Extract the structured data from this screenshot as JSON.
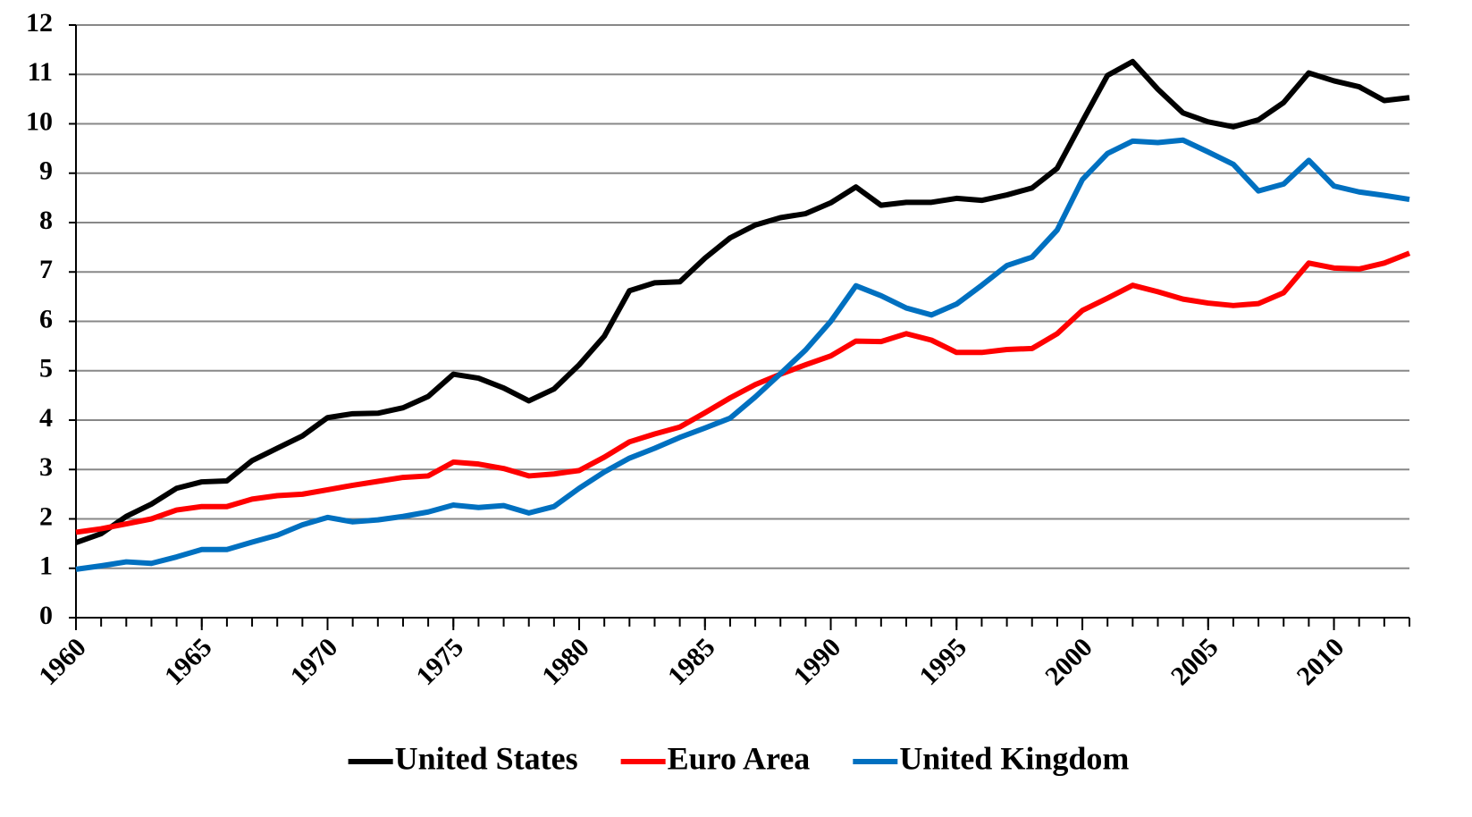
{
  "chart_data": {
    "type": "line",
    "x": [
      1960,
      1961,
      1962,
      1963,
      1964,
      1965,
      1966,
      1967,
      1968,
      1969,
      1970,
      1971,
      1972,
      1973,
      1974,
      1975,
      1976,
      1977,
      1978,
      1979,
      1980,
      1981,
      1982,
      1983,
      1984,
      1985,
      1986,
      1987,
      1988,
      1989,
      1990,
      1991,
      1992,
      1993,
      1994,
      1995,
      1996,
      1997,
      1998,
      1999,
      2000,
      2001,
      2002,
      2003,
      2004,
      2005,
      2006,
      2007,
      2008,
      2009,
      2010,
      2011,
      2012,
      2013
    ],
    "series": [
      {
        "name": "United States",
        "color": "#000000",
        "values": [
          1.52,
          1.7,
          2.05,
          2.3,
          2.62,
          2.75,
          2.77,
          3.18,
          3.43,
          3.68,
          4.05,
          4.13,
          4.14,
          4.25,
          4.48,
          4.93,
          4.85,
          4.65,
          4.39,
          4.63,
          5.12,
          5.7,
          6.62,
          6.78,
          6.8,
          7.28,
          7.69,
          7.95,
          8.1,
          8.18,
          8.4,
          8.72,
          8.35,
          8.41,
          8.41,
          8.49,
          8.45,
          8.56,
          8.7,
          9.1,
          10.05,
          10.98,
          11.26,
          10.7,
          10.22,
          10.04,
          9.94,
          10.08,
          10.43,
          11.03,
          10.87,
          10.75,
          10.47,
          10.53
        ]
      },
      {
        "name": "Euro Area",
        "color": "#ff0000",
        "values": [
          1.73,
          1.8,
          1.9,
          2.0,
          2.18,
          2.25,
          2.25,
          2.4,
          2.47,
          2.5,
          2.59,
          2.68,
          2.76,
          2.84,
          2.87,
          3.15,
          3.11,
          3.02,
          2.87,
          2.91,
          2.98,
          3.25,
          3.56,
          3.72,
          3.86,
          4.15,
          4.45,
          4.72,
          4.93,
          5.12,
          5.3,
          5.6,
          5.59,
          5.75,
          5.62,
          5.37,
          5.37,
          5.43,
          5.45,
          5.75,
          6.22,
          6.47,
          6.73,
          6.6,
          6.45,
          6.37,
          6.32,
          6.36,
          6.58,
          7.18,
          7.08,
          7.06,
          7.18,
          7.38
        ]
      },
      {
        "name": "United Kingdom",
        "color": "#0070c0",
        "values": [
          0.98,
          1.05,
          1.13,
          1.1,
          1.23,
          1.38,
          1.38,
          1.53,
          1.67,
          1.88,
          2.03,
          1.94,
          1.98,
          2.05,
          2.14,
          2.28,
          2.23,
          2.27,
          2.12,
          2.25,
          2.62,
          2.95,
          3.23,
          3.43,
          3.65,
          3.84,
          4.04,
          4.47,
          4.94,
          5.42,
          6.0,
          6.72,
          6.52,
          6.27,
          6.13,
          6.35,
          6.73,
          7.13,
          7.3,
          7.85,
          8.87,
          9.4,
          9.65,
          9.62,
          9.67,
          9.43,
          9.18,
          8.64,
          8.78,
          9.26,
          8.74,
          8.62,
          8.55,
          8.47
        ]
      }
    ],
    "xlim": [
      1960,
      2013
    ],
    "xticks": [
      1960,
      1965,
      1970,
      1975,
      1980,
      1985,
      1990,
      1995,
      2000,
      2005,
      2010
    ],
    "ylim": [
      0,
      12
    ],
    "yticks": [
      0,
      1,
      2,
      3,
      4,
      5,
      6,
      7,
      8,
      9,
      10,
      11,
      12
    ],
    "grid": true,
    "legend": "bottom"
  }
}
